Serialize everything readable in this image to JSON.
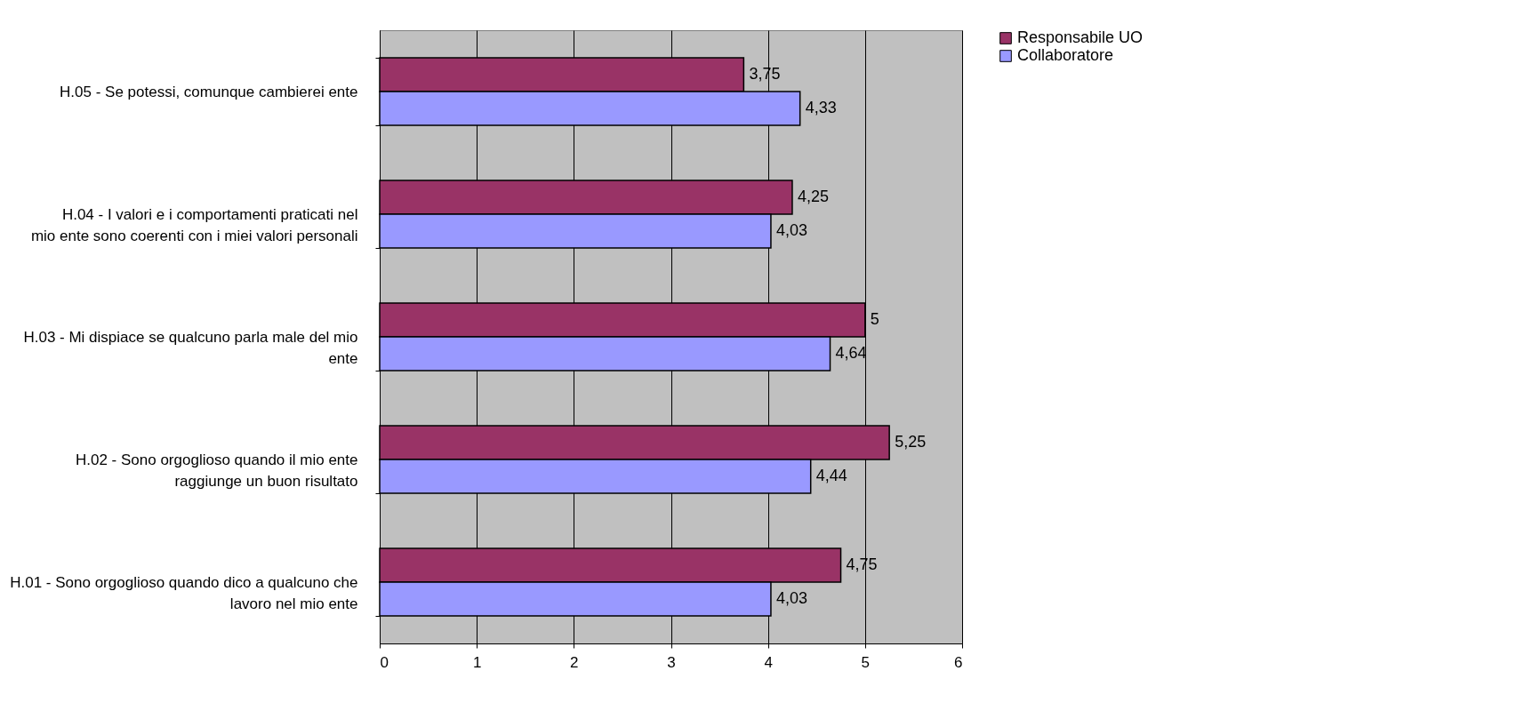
{
  "chart_data": {
    "type": "bar",
    "orientation": "horizontal",
    "categories": [
      "H.05 - Se potessi, comunque cambierei ente",
      "H.04 - I valori e i comportamenti praticati nel mio ente sono coerenti con i miei valori personali",
      "H.03 - Mi dispiace se qualcuno parla male del mio ente",
      "H.02 - Sono orgoglioso quando il mio ente raggiunge un buon risultato",
      "H.01 - Sono orgoglioso quando dico a qualcuno che lavoro nel mio ente"
    ],
    "series": [
      {
        "name": "Responsabile UO",
        "color": "#993366",
        "values": [
          3.75,
          4.25,
          5,
          5.25,
          4.75
        ],
        "value_labels": [
          "3,75",
          "4,25",
          "5",
          "5,25",
          "4,75"
        ]
      },
      {
        "name": "Collaboratore",
        "color": "#9999ff",
        "values": [
          4.33,
          4.03,
          4.64,
          4.44,
          4.03
        ],
        "value_labels": [
          "4,33",
          "4,03",
          "4,64",
          "4,44",
          "4,03"
        ]
      }
    ],
    "xlim": [
      0,
      6
    ],
    "xticks": [
      0,
      1,
      2,
      3,
      4,
      5,
      6
    ],
    "grid": "x",
    "legend": "right"
  }
}
